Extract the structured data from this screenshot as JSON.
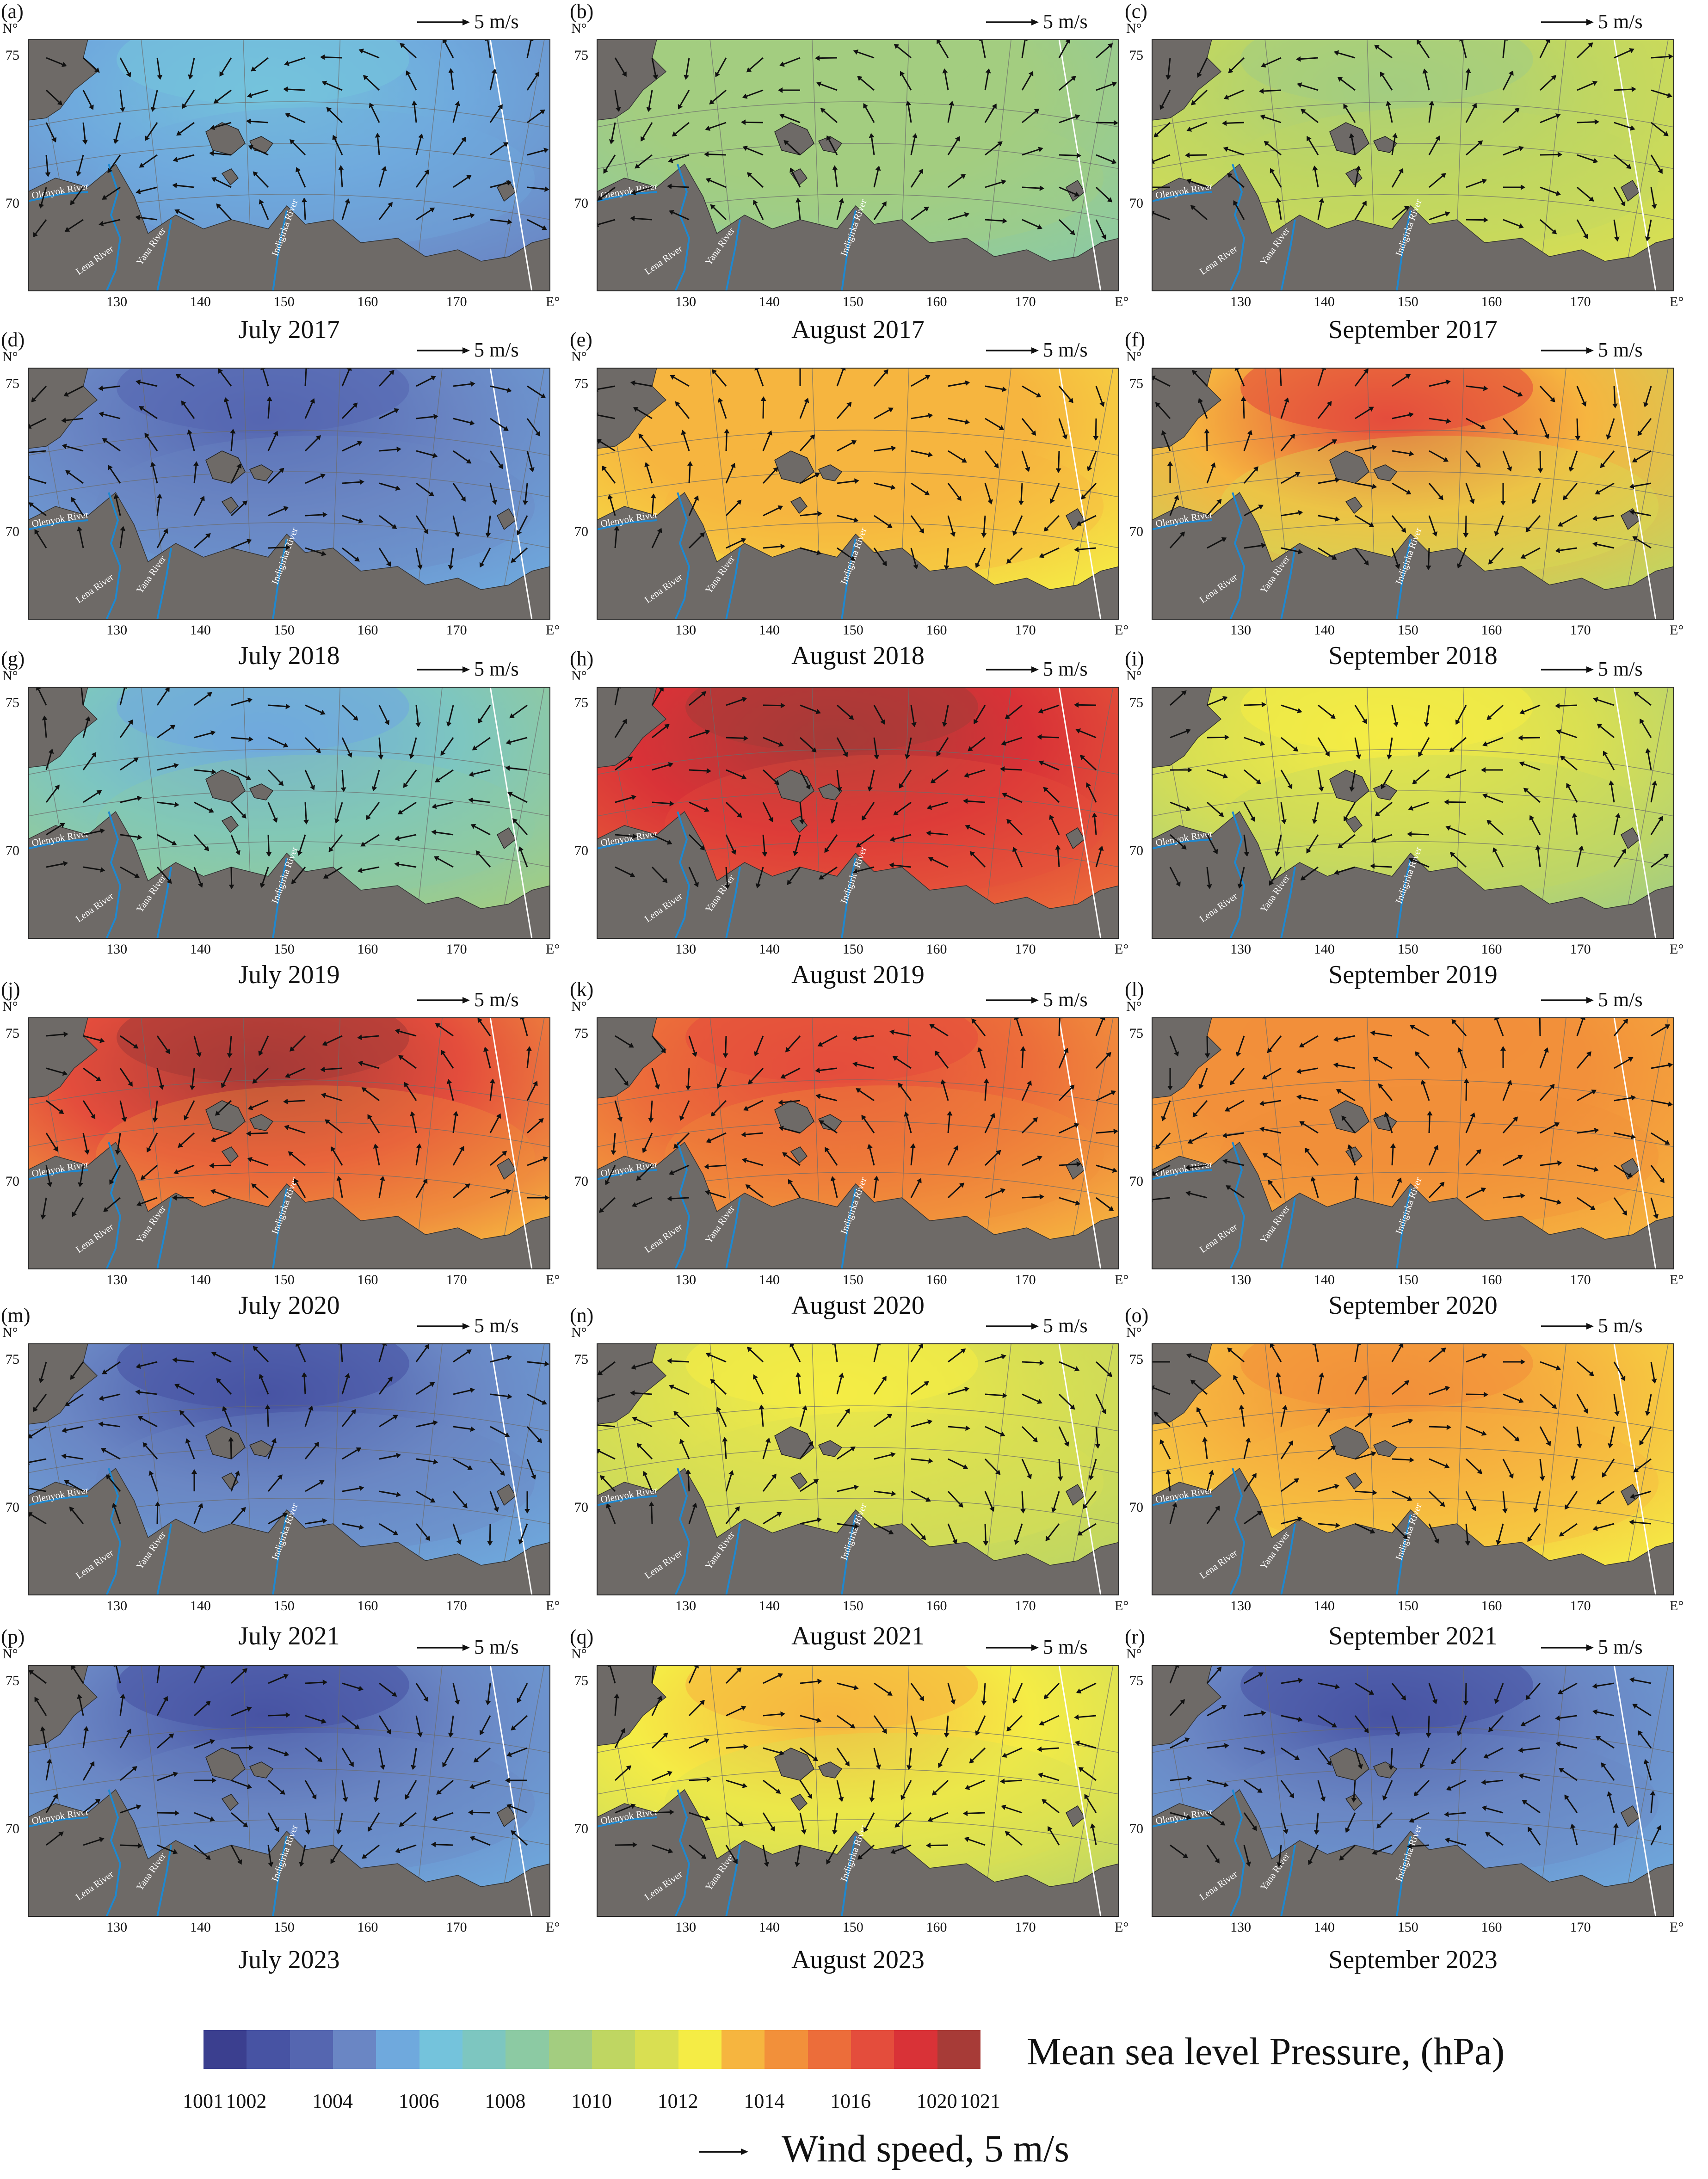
{
  "figure": {
    "scale_label": "5 m/s",
    "north_label": "N°",
    "east_label": "E°",
    "lat_labels": [
      "75",
      "70"
    ],
    "lon_labels": [
      "130",
      "140",
      "150",
      "160",
      "170"
    ],
    "rivers": [
      "Olenyok River",
      "Lena River",
      "Yana River",
      "Indigirka River"
    ],
    "panels": [
      {
        "tag": "(a)",
        "caption": "July 2017",
        "pressure_level": 3,
        "low_center": 5
      },
      {
        "tag": "(b)",
        "caption": "August 2017",
        "pressure_level": 7,
        "low_center": 8
      },
      {
        "tag": "(c)",
        "caption": "September 2017",
        "pressure_level": 10,
        "low_center": 8
      },
      {
        "tag": "(d)",
        "caption": "July 2018",
        "pressure_level": 4,
        "low_center": 2
      },
      {
        "tag": "(e)",
        "caption": "August 2018",
        "pressure_level": 11,
        "low_center": 12
      },
      {
        "tag": "(f)",
        "caption": "September 2018",
        "pressure_level": 9,
        "low_center": 15
      },
      {
        "tag": "(g)",
        "caption": "July 2019",
        "pressure_level": 8,
        "low_center": 4
      },
      {
        "tag": "(h)",
        "caption": "August 2019",
        "pressure_level": 14,
        "low_center": 17
      },
      {
        "tag": "(i)",
        "caption": "September 2019",
        "pressure_level": 8,
        "low_center": 11
      },
      {
        "tag": "(j)",
        "caption": "July 2020",
        "pressure_level": 12,
        "low_center": 17
      },
      {
        "tag": "(k)",
        "caption": "August 2020",
        "pressure_level": 12,
        "low_center": 15
      },
      {
        "tag": "(l)",
        "caption": "September 2020",
        "pressure_level": 12,
        "low_center": 13
      },
      {
        "tag": "(m)",
        "caption": "July 2021",
        "pressure_level": 4,
        "low_center": 1
      },
      {
        "tag": "(n)",
        "caption": "August 2021",
        "pressure_level": 9,
        "low_center": 11
      },
      {
        "tag": "(o)",
        "caption": "September 2021",
        "pressure_level": 11,
        "low_center": 13
      },
      {
        "tag": "(p)",
        "caption": "July 2023",
        "pressure_level": 4,
        "low_center": 1
      },
      {
        "tag": "(q)",
        "caption": "August 2023",
        "pressure_level": 9,
        "low_center": 12
      },
      {
        "tag": "(r)",
        "caption": "September 2023",
        "pressure_level": 4,
        "low_center": 1
      }
    ]
  },
  "colorbar": {
    "title": "Mean sea level Pressure, (hPa)",
    "colors": [
      "#3b3f8f",
      "#4753a3",
      "#5566b0",
      "#6a86c4",
      "#6fa9dd",
      "#74c3dc",
      "#7dc6c0",
      "#8ccaa3",
      "#a3cd80",
      "#bfd662",
      "#d9df52",
      "#f5ec45",
      "#f6b53f",
      "#f2903a",
      "#ec6d3a",
      "#e44d3c",
      "#d93237",
      "#a73b37"
    ],
    "tick_labels": [
      "1001",
      "1002",
      "1004",
      "1006",
      "1008",
      "1010",
      "1012",
      "1014",
      "1016",
      "1020",
      "1021"
    ]
  },
  "wind_legend": {
    "label": "Wind speed, 5 m/s"
  }
}
